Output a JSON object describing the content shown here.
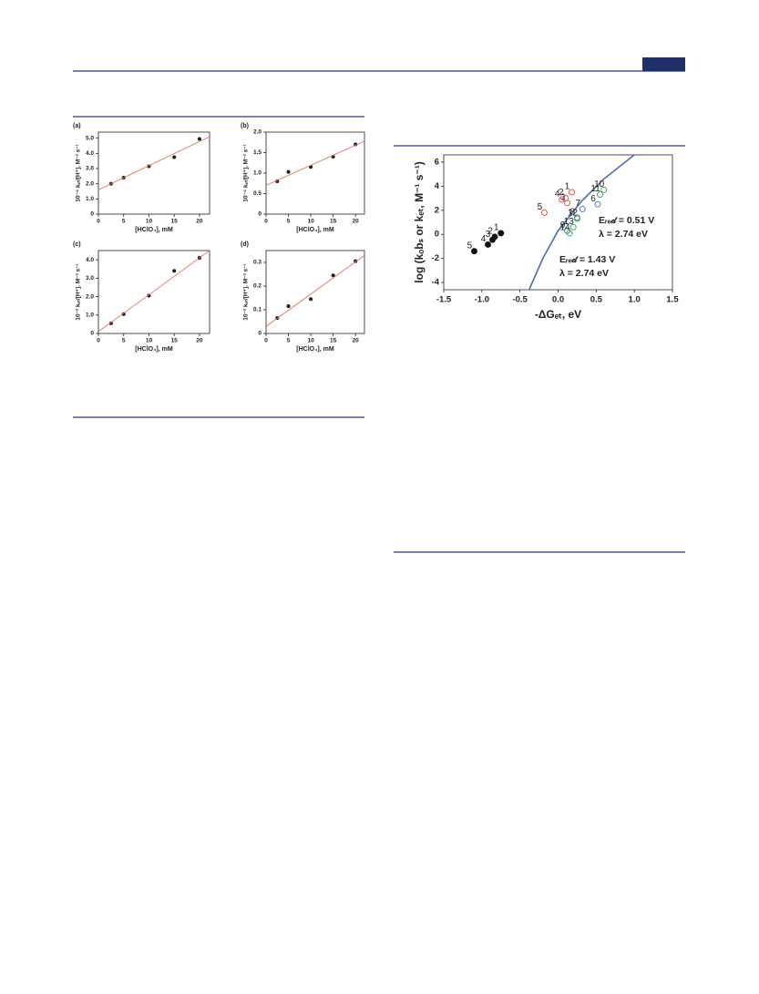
{
  "chart_data": [
    {
      "type": "scatter",
      "panel": "(a)",
      "ylabel": "10⁻⁴ kₑₜ/[H⁺], M⁻² s⁻¹",
      "xlabel": "[HClO₄], mM",
      "xlim": [
        0,
        22
      ],
      "xticks": [
        0,
        5,
        10,
        15,
        20
      ],
      "ylim": [
        0,
        5.4
      ],
      "yticks": [
        0,
        {
          "value": 1,
          "label": "1.0"
        },
        {
          "value": 2,
          "label": "2.0"
        },
        {
          "value": 3,
          "label": "3.0"
        },
        {
          "value": 4,
          "label": "4.0"
        },
        {
          "value": 5,
          "label": "5.0"
        }
      ],
      "series": [
        {
          "kind": "filled",
          "color": "#222222",
          "x": [
            2.5,
            5,
            10,
            15,
            20
          ],
          "values": [
            2.0,
            2.4,
            3.15,
            3.75,
            4.95
          ]
        },
        {
          "kind": "line",
          "color": "#e8715f",
          "x": [
            0,
            22
          ],
          "values": [
            1.6,
            5.1
          ]
        }
      ]
    },
    {
      "type": "scatter",
      "panel": "(b)",
      "ylabel": "10⁻⁴ kₑₜ/[H⁺], M⁻² s⁻¹",
      "xlabel": "[HClO₄], mM",
      "xlim": [
        0,
        22
      ],
      "xticks": [
        0,
        5,
        10,
        15,
        20
      ],
      "ylim": [
        0,
        2.0
      ],
      "yticks": [
        0,
        0.5,
        {
          "value": 1,
          "label": "1.0"
        },
        1.5,
        {
          "value": 2,
          "label": "2.0"
        }
      ],
      "series": [
        {
          "kind": "filled",
          "color": "#222222",
          "x": [
            2.5,
            5,
            10,
            15,
            20
          ],
          "values": [
            0.8,
            1.03,
            1.15,
            1.4,
            1.7
          ]
        },
        {
          "kind": "line",
          "color": "#e8715f",
          "x": [
            0,
            22
          ],
          "values": [
            0.7,
            1.78
          ]
        }
      ]
    },
    {
      "type": "scatter",
      "panel": "(c)",
      "ylabel": "10⁻³ kₑₜ/[H⁺], M⁻² s⁻¹",
      "xlabel": "[HClO₄], mM",
      "xlim": [
        0,
        22
      ],
      "xticks": [
        0,
        5,
        10,
        15,
        20
      ],
      "ylim": [
        0,
        4.5
      ],
      "yticks": [
        0,
        {
          "value": 1,
          "label": "1.0"
        },
        {
          "value": 2,
          "label": "2.0"
        },
        {
          "value": 3,
          "label": "3.0"
        },
        {
          "value": 4,
          "label": "4.0"
        }
      ],
      "series": [
        {
          "kind": "filled",
          "color": "#222222",
          "x": [
            2.5,
            5,
            10,
            15,
            20
          ],
          "values": [
            0.55,
            1.05,
            2.05,
            3.4,
            4.1
          ]
        },
        {
          "kind": "line",
          "color": "#e8715f",
          "x": [
            0,
            22
          ],
          "values": [
            0.1,
            4.5
          ]
        }
      ]
    },
    {
      "type": "scatter",
      "panel": "(d)",
      "ylabel": "10⁻³ kₑₜ/[H⁺], M⁻² s⁻¹",
      "xlabel": "[HClO₄], mM",
      "xlim": [
        0,
        22
      ],
      "xticks": [
        0,
        5,
        10,
        15,
        20
      ],
      "ylim": [
        0,
        0.35
      ],
      "yticks": [
        0,
        0.1,
        0.2,
        0.3
      ],
      "series": [
        {
          "kind": "filled",
          "color": "#222222",
          "x": [
            2.5,
            5,
            10,
            15,
            20
          ],
          "values": [
            0.065,
            0.115,
            0.145,
            0.245,
            0.305
          ]
        },
        {
          "kind": "line",
          "color": "#e8715f",
          "x": [
            0,
            22
          ],
          "values": [
            0.03,
            0.33
          ]
        }
      ]
    },
    {
      "type": "scatter",
      "ylabel": "log (kₒbₛ or kₑₜ, M⁻¹ s⁻¹)",
      "xlabel": "-ΔGₑₜ, eV",
      "xlim": [
        -1.5,
        1.5
      ],
      "xticks": [
        -1.5,
        {
          "value": -1,
          "label": "-1.0"
        },
        -0.5,
        {
          "value": 0,
          "label": "0.0"
        },
        0.5,
        {
          "value": 1,
          "label": "1.0"
        },
        1.5
      ],
      "ylim": [
        -4.6,
        6.6
      ],
      "yticks": [
        -4,
        -2,
        0,
        2,
        4,
        6
      ],
      "series": [
        {
          "kind": "line",
          "color": "#4a6bb5",
          "x": [
            -0.38,
            -0.2,
            0,
            0.3,
            0.6,
            1.0
          ],
          "values": [
            -4.6,
            -2,
            0.3,
            2.7,
            4.6,
            6.6
          ]
        },
        {
          "kind": "filled",
          "color": "#111111",
          "x": [
            -0.75,
            -0.83,
            -0.86,
            -0.92,
            -1.1
          ],
          "values": [
            0.1,
            -0.2,
            -0.45,
            -0.85,
            -1.4
          ],
          "labels": [
            "1",
            "2",
            "3",
            "4",
            "5"
          ]
        },
        {
          "kind": "open",
          "color": "#e0403a",
          "x": [
            0.18,
            0.1,
            0.12,
            0.05,
            -0.18
          ],
          "values": [
            3.5,
            3.0,
            2.6,
            2.9,
            1.8
          ],
          "labels": [
            "1",
            "2",
            "3",
            "4",
            "5"
          ]
        },
        {
          "kind": "open",
          "color": "#4a6bb5",
          "x": [
            0.52,
            0.32,
            0.25,
            0.12
          ],
          "values": [
            2.5,
            2.1,
            1.4,
            0.3
          ],
          "labels": [
            "6",
            "7",
            "8",
            "9"
          ]
        },
        {
          "kind": "open",
          "color": "#2fa35a",
          "x": [
            0.6,
            0.55,
            0.25,
            0.2,
            0.15
          ],
          "values": [
            3.7,
            3.3,
            1.3,
            0.6,
            0.1
          ],
          "labels": [
            "10",
            "11",
            "12",
            "13",
            "14"
          ]
        }
      ],
      "annotations": [
        {
          "text": "Eᵣₑ𝒹 = 0.51 V",
          "color": "#2fa35a"
        },
        {
          "text": "λ = 2.74 eV",
          "color": "#2fa35a"
        },
        {
          "text": "Eᵣₑ𝒹 = 1.43 V",
          "color": "#4a6bb5"
        },
        {
          "text": "λ = 2.74 eV",
          "color": "#4a6bb5"
        }
      ]
    }
  ]
}
